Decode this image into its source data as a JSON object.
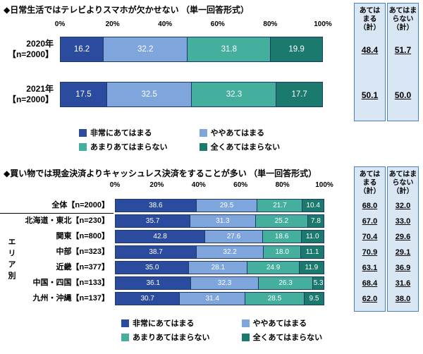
{
  "colors": {
    "series": [
      "#2B4B9E",
      "#7EA6DD",
      "#44AF9C",
      "#1B7A6E"
    ],
    "panel_bg": "#D9E6F4",
    "panel_border": "#4A7EBB",
    "bar_border": "#203864"
  },
  "chart_data": [
    {
      "type": "bar",
      "stacked": true,
      "orientation": "horizontal",
      "title": "◆日常生活ではテレビよりスマホが欠かせない （単一回答形式）",
      "xlim": [
        0,
        100
      ],
      "ticks": [
        "0%",
        "20%",
        "40%",
        "60%",
        "80%",
        "100%"
      ],
      "categories": [
        "2020年\n【n=2000】",
        "2021年\n【n=2000】"
      ],
      "series": [
        {
          "name": "非常にあてはまる",
          "values": [
            16.2,
            17.5
          ]
        },
        {
          "name": "ややあてはまる",
          "values": [
            32.2,
            32.5
          ]
        },
        {
          "name": "あまりあてはまらない",
          "values": [
            31.8,
            32.3
          ]
        },
        {
          "name": "全くあてはまらない",
          "values": [
            19.9,
            17.7
          ]
        }
      ],
      "summary": {
        "headers": [
          "あては\nまる\n（計）",
          "あてはま\nらない\n（計）"
        ],
        "agree": [
          "48.4",
          "50.1"
        ],
        "disagree": [
          "51.7",
          "50.0"
        ]
      }
    },
    {
      "type": "bar",
      "stacked": true,
      "orientation": "horizontal",
      "title": "◆買い物では現金決済よりキャッシュレス決済をすることが多い （単一回答形式）",
      "group_label": "エリア別",
      "xlim": [
        0,
        100
      ],
      "ticks": [
        "0%",
        "20%",
        "40%",
        "60%",
        "80%",
        "100%"
      ],
      "categories": [
        "全体【n=2000】",
        "北海道・東北【n=230】",
        "関東【n=800】",
        "中部【n=323】",
        "近畿【n=377】",
        "中国・四国【n=133】",
        "九州・沖縄【n=137】"
      ],
      "series": [
        {
          "name": "非常にあてはまる",
          "values": [
            38.6,
            35.7,
            42.8,
            38.7,
            35.0,
            36.1,
            30.7
          ]
        },
        {
          "name": "ややあてはまる",
          "values": [
            29.5,
            31.3,
            27.6,
            32.2,
            28.1,
            32.3,
            31.4
          ]
        },
        {
          "name": "あまりあてはまらない",
          "values": [
            21.7,
            25.2,
            18.6,
            18.0,
            24.9,
            26.3,
            28.5
          ]
        },
        {
          "name": "全くあてはまらない",
          "values": [
            10.4,
            7.8,
            11.0,
            11.1,
            11.9,
            5.3,
            9.5
          ]
        }
      ],
      "summary": {
        "headers": [
          "あては\nまる\n（計）",
          "あてはま\nらない\n（計）"
        ],
        "agree": [
          "68.0",
          "67.0",
          "70.4",
          "70.9",
          "63.1",
          "68.4",
          "62.0"
        ],
        "disagree": [
          "32.0",
          "33.0",
          "29.6",
          "29.1",
          "36.9",
          "31.6",
          "38.0"
        ]
      }
    }
  ]
}
